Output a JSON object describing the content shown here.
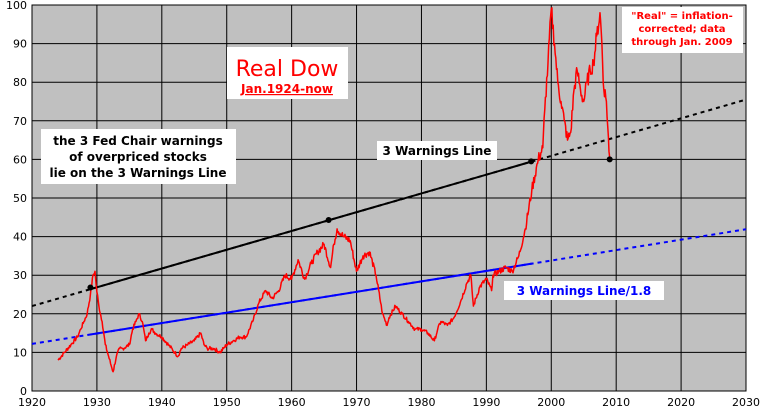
{
  "chart_data": {
    "type": "line",
    "title": "Real Dow",
    "subtitle": "Jan.1924-now",
    "note_lines": [
      "\"Real\" = inflation-",
      "corrected; data",
      "through Jan. 2009"
    ],
    "xlim": [
      1920,
      2030
    ],
    "ylim": [
      0,
      100
    ],
    "x_ticks": [
      1920,
      1930,
      1940,
      1950,
      1960,
      1970,
      1980,
      1990,
      2000,
      2010,
      2020,
      2030
    ],
    "y_ticks": [
      0,
      10,
      20,
      30,
      40,
      50,
      60,
      70,
      80,
      90,
      100
    ],
    "grid": true,
    "series": [
      {
        "role": "real-dow",
        "color": "#ff0000",
        "x": [
          1924.0,
          1925.0,
          1926.0,
          1927.0,
          1927.5,
          1928.0,
          1928.5,
          1929.0,
          1929.4,
          1929.7,
          1929.9,
          1930.3,
          1930.8,
          1931.3,
          1931.8,
          1932.3,
          1932.5,
          1933.0,
          1933.5,
          1934.0,
          1935.0,
          1935.5,
          1936.0,
          1936.5,
          1937.0,
          1937.5,
          1938.0,
          1938.5,
          1939.0,
          1940.0,
          1941.0,
          1942.0,
          1942.5,
          1943.0,
          1944.0,
          1945.0,
          1946.0,
          1946.5,
          1947.0,
          1948.0,
          1949.0,
          1949.5,
          1950.0,
          1951.0,
          1952.0,
          1953.0,
          1954.0,
          1955.0,
          1956.0,
          1957.0,
          1958.0,
          1959.0,
          1960.0,
          1961.0,
          1962.0,
          1963.0,
          1964.0,
          1965.0,
          1966.0,
          1966.5,
          1967.0,
          1968.0,
          1969.0,
          1970.0,
          1971.0,
          1972.0,
          1973.0,
          1974.0,
          1974.7,
          1975.0,
          1976.0,
          1977.0,
          1978.0,
          1979.0,
          1980.0,
          1981.0,
          1982.0,
          1982.5,
          1983.0,
          1984.0,
          1985.0,
          1986.0,
          1987.0,
          1987.6,
          1987.9,
          1988.0,
          1989.0,
          1990.0,
          1990.8,
          1991.0,
          1992.0,
          1993.0,
          1994.0,
          1995.0,
          1996.0,
          1997.0,
          1998.0,
          1998.7,
          1999.0,
          1999.5,
          2000.0,
          2000.5,
          2001.0,
          2001.5,
          2002.0,
          2002.5,
          2003.0,
          2003.5,
          2004.0,
          2004.5,
          2005.0,
          2005.5,
          2006.0,
          2006.5,
          2007.0,
          2007.5,
          2007.8,
          2008.0,
          2008.5,
          2008.9,
          2009.0
        ],
        "y": [
          8,
          10,
          12,
          14,
          16,
          18,
          20,
          25,
          30,
          31,
          27,
          22,
          18,
          12,
          9,
          6,
          5,
          9,
          11,
          11,
          12,
          16,
          18,
          20,
          18,
          13,
          15,
          16,
          15,
          14,
          12,
          10,
          9,
          11,
          12,
          13,
          15,
          12,
          11,
          11,
          10,
          11,
          12,
          13,
          14,
          14,
          18,
          23,
          26,
          24,
          26,
          30,
          29,
          34,
          29,
          33,
          36,
          38,
          32,
          38,
          42,
          40,
          39,
          31,
          35,
          36,
          30,
          20,
          17,
          19,
          22,
          20,
          18,
          16,
          16,
          15,
          13,
          16,
          18,
          17,
          19,
          23,
          28,
          30,
          24,
          22,
          27,
          29,
          26,
          30,
          31,
          32,
          31,
          35,
          42,
          52,
          60,
          63,
          73,
          85,
          99,
          90,
          80,
          75,
          70,
          65,
          67,
          78,
          83,
          78,
          75,
          80,
          83,
          85,
          92,
          98,
          90,
          80,
          75,
          62,
          60
        ],
        "points": 121
      },
      {
        "role": "3-warnings-line",
        "label": "3 Warnings Line",
        "color": "#000000",
        "solid_range": [
          1929.0,
          1997.0
        ],
        "x": [
          1920,
          2030
        ],
        "y": [
          22,
          75.5
        ]
      },
      {
        "role": "3-warnings-line-div-1.8",
        "label": "3 Warnings Line/1.8",
        "color": "#0000ff",
        "solid_range": [
          1929.0,
          1997.0
        ],
        "x": [
          1920,
          2030
        ],
        "y": [
          12.2,
          41.9
        ]
      }
    ],
    "markers": [
      {
        "x": 1929.0,
        "y": 26.8,
        "color": "#000000"
      },
      {
        "x": 1965.7,
        "y": 44.3,
        "color": "#000000"
      },
      {
        "x": 1996.9,
        "y": 59.5,
        "color": "#000000"
      },
      {
        "x": 2009.0,
        "y": 60.0,
        "color": "#000000"
      }
    ],
    "annotations": [
      {
        "id": "fed-warnings",
        "lines": [
          "the 3 Fed Chair warnings",
          "of overpriced stocks",
          "lie on the 3 Warnings Line"
        ],
        "color": "#000000"
      },
      {
        "id": "warnings-line-label",
        "lines": [
          "3 Warnings Line"
        ],
        "color": "#000000"
      },
      {
        "id": "warnings-line-div-label",
        "lines": [
          "3 Warnings Line/1.8"
        ],
        "color": "#0000ff"
      }
    ]
  }
}
